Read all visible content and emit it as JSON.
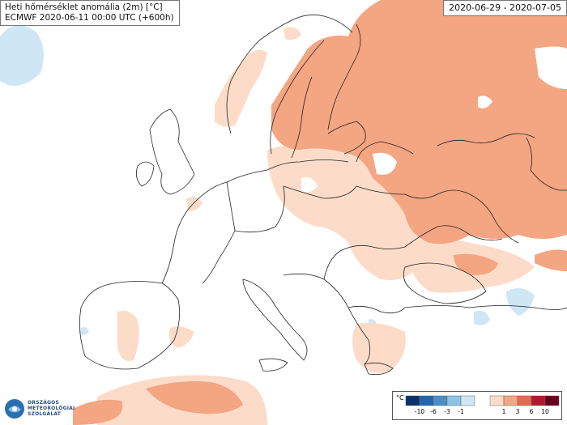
{
  "header": {
    "title_line1": "Heti hőmérséklet anomália (2m) [°C]",
    "title_line2": "ECMWF 2020-06-11 00:00 UTC (+600h)",
    "period": "2020-06-29 - 2020-07-05"
  },
  "logo": {
    "line1": "ORSZÁGOS",
    "line2": "METEOROLÓGIAI",
    "line3": "SZOLGÁLAT",
    "icon": "omsz-logo-icon"
  },
  "legend": {
    "unit": "°C",
    "ticks": [
      "-10",
      "-6",
      "-3",
      "-1",
      "1",
      "3",
      "6",
      "10"
    ],
    "cold_colors": [
      "#08306b",
      "#2166ac",
      "#4a90c8",
      "#8cc4e6",
      "#cfe6f4"
    ],
    "warm_colors": [
      "#fcdcc8",
      "#f4a582",
      "#e36b53",
      "#b2182b",
      "#67001f"
    ]
  },
  "colors": {
    "land": "#ffffff",
    "border": "#222222",
    "light_warm": "#fcdcc8",
    "warm": "#f4a582",
    "light_cold": "#cfe6f4"
  }
}
